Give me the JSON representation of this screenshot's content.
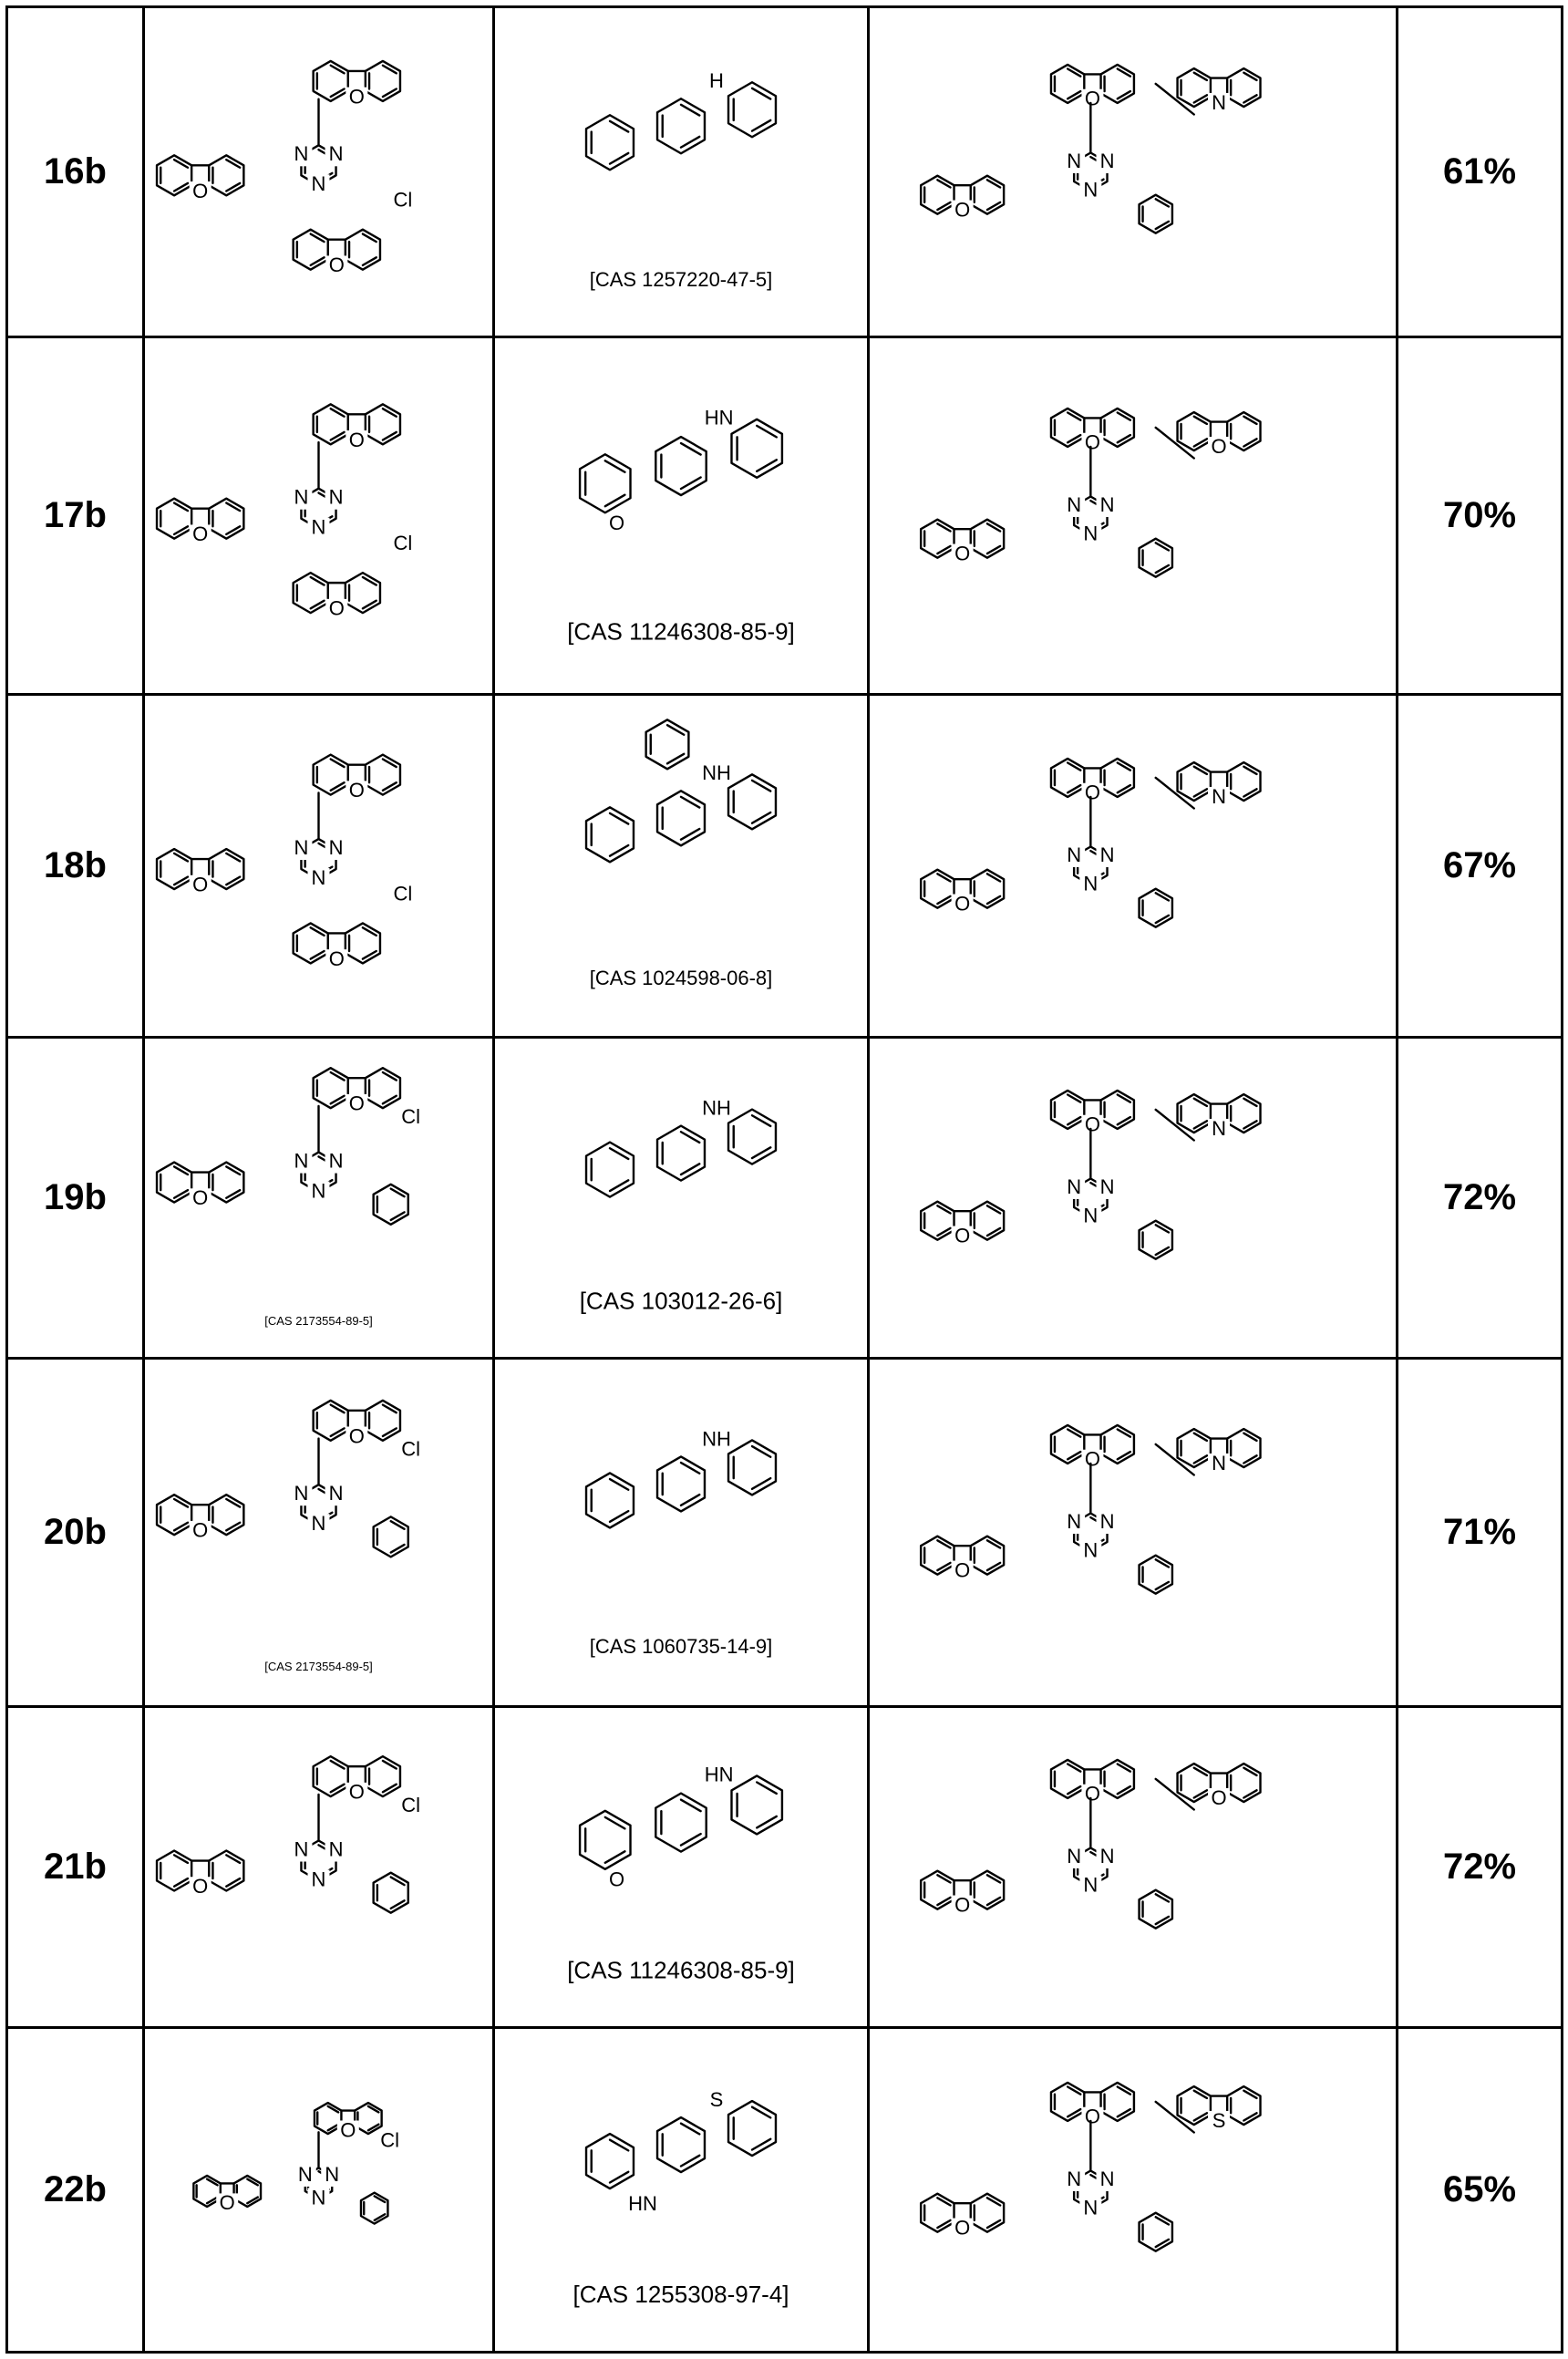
{
  "table": {
    "rows": [
      {
        "id": "16b",
        "yield": "61%",
        "reactant2_cas": "[CAS 1257220-47-5]",
        "reactant1_cas": ""
      },
      {
        "id": "17b",
        "yield": "70%",
        "reactant2_cas": "[CAS 11246308-85-9]",
        "reactant1_cas": ""
      },
      {
        "id": "18b",
        "yield": "67%",
        "reactant2_cas": "[CAS 1024598-06-8]",
        "reactant1_cas": ""
      },
      {
        "id": "19b",
        "yield": "72%",
        "reactant2_cas": "[CAS 103012-26-6]",
        "reactant1_cas": "[CAS 2173554-89-5]"
      },
      {
        "id": "20b",
        "yield": "71%",
        "reactant2_cas": "[CAS 1060735-14-9]",
        "reactant1_cas": "[CAS 2173554-89-5]"
      },
      {
        "id": "21b",
        "yield": "72%",
        "reactant2_cas": "[CAS 11246308-85-9]",
        "reactant1_cas": ""
      },
      {
        "id": "22b",
        "yield": "65%",
        "reactant2_cas": "[CAS 1255308-97-4]",
        "reactant1_cas": ""
      }
    ]
  },
  "atoms": {
    "O": "O",
    "N": "N",
    "NH": "NH",
    "HN": "HN",
    "H": "H",
    "S": "S",
    "Cl": "Cl"
  }
}
